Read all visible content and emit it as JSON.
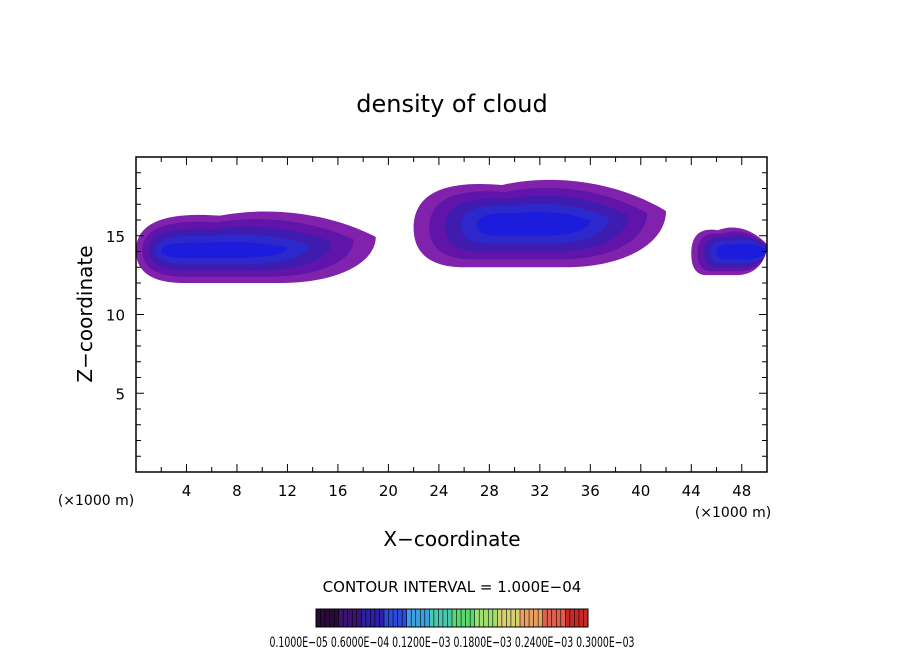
{
  "chart_data": {
    "type": "heatmap",
    "title": "density of cloud",
    "xlabel": "X−coordinate",
    "ylabel": "Z−coordinate",
    "x_unit_left": "(×1000 m)",
    "x_unit_right": "(×1000 m)",
    "xlim": [
      0,
      50
    ],
    "ylim": [
      0,
      20
    ],
    "x_ticks": [
      "4",
      "8",
      "12",
      "16",
      "20",
      "24",
      "28",
      "32",
      "36",
      "40",
      "44",
      "48"
    ],
    "y_ticks": [
      "5",
      "10",
      "15"
    ],
    "contour_interval_text": "CONTOUR INTERVAL = 1.000E−04",
    "colorbar_labels_text": "0.1000E−05  0.6000E−04  0.1200E−03  0.1800E−03  0.2400E−03  0.3000E−03",
    "colorbar_colors": [
      "#2a0b3a",
      "#3a1470",
      "#2c1fa8",
      "#2e4ad8",
      "#3fa0e0",
      "#4cc8b0",
      "#5cd870",
      "#a0e070",
      "#d8d070",
      "#e8a060",
      "#e06050",
      "#c82828"
    ],
    "cloud_regions": [
      {
        "name": "left-cloud",
        "x": [
          0,
          19
        ],
        "z": [
          12,
          16.5
        ],
        "core_x": [
          2,
          12
        ],
        "core_z": [
          13.6,
          14.6
        ],
        "peak_density": 0.00012
      },
      {
        "name": "central-cloud",
        "x": [
          22,
          42
        ],
        "z": [
          13,
          18.5
        ],
        "core_x": [
          27,
          36
        ],
        "core_z": [
          15,
          16.5
        ],
        "peak_density": 0.00012
      },
      {
        "name": "right-cloud",
        "x": [
          44,
          50
        ],
        "z": [
          12.5,
          15.5
        ],
        "core_x": [
          46,
          50
        ],
        "core_z": [
          13.5,
          14.5
        ],
        "peak_density": 0.00012
      }
    ]
  }
}
